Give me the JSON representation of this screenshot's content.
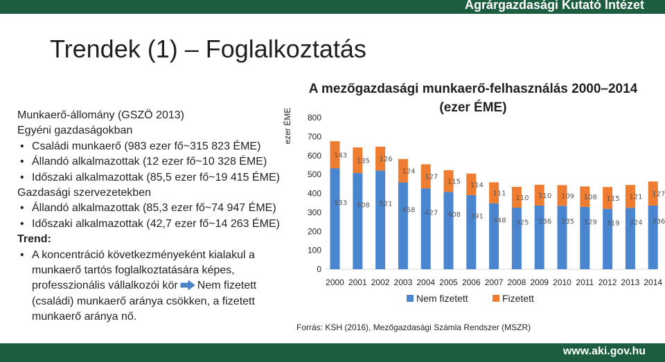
{
  "header": {
    "org_name": "Agrárgazdasági Kutató Intézet"
  },
  "slide": {
    "title": "Trendek (1) – Foglalkoztatás"
  },
  "left_panel": {
    "lines": [
      {
        "kind": "plain",
        "text": "Munkaerő-állomány (GSZÖ 2013)"
      },
      {
        "kind": "plain",
        "text": "Egyéni gazdaságokban"
      },
      {
        "kind": "bullet",
        "text": "Családi munkaerő (983 ezer fő~315 823 ÉME)"
      },
      {
        "kind": "bullet",
        "text": "Állandó alkalmazottak (12 ezer fő~10 328 ÉME)"
      },
      {
        "kind": "bullet",
        "text": "Időszaki alkalmazottak (85,5 ezer fő~19 415 ÉME)"
      },
      {
        "kind": "plain",
        "text": "Gazdasági szervezetekben"
      },
      {
        "kind": "bullet",
        "text": "Állandó alkalmazottak (85,3 ezer fő~74 947 ÉME)"
      },
      {
        "kind": "bullet",
        "text": "Időszaki alkalmazottak (42,7 ezer fő~14 263 ÉME)"
      },
      {
        "kind": "strong",
        "text": "Trend:"
      },
      {
        "kind": "bullet",
        "text": "A koncentráció következményeként kialakul a"
      },
      {
        "kind": "cont",
        "text": "munkaerő tartós foglalkoztatására képes,"
      },
      {
        "kind": "cont-arrow",
        "text": "professzionális vállalkozói kör",
        "text_after": "Nem fizetett"
      },
      {
        "kind": "cont",
        "text": "(családi) munkaerő aránya csökken, a fizetett"
      },
      {
        "kind": "cont",
        "text": "munkaerő aránya nő."
      }
    ]
  },
  "chart_data": {
    "type": "bar",
    "stacked": true,
    "title_line1": "A mezőgazdasági munkaerő-felhasználás 2000–2014",
    "title_line2": "(ezer ÉME)",
    "ylabel": "ezer ÉME",
    "xlabel": "",
    "ylim": [
      0,
      800
    ],
    "yticks": [
      0,
      100,
      200,
      300,
      400,
      500,
      600,
      700,
      800
    ],
    "grid": false,
    "legend": "bottom",
    "categories": [
      "2000",
      "2001",
      "2002",
      "2003",
      "2004",
      "2005",
      "2006",
      "2007",
      "2008",
      "2009",
      "2010",
      "2011",
      "2012",
      "2013",
      "2014"
    ],
    "series": [
      {
        "name": "Nem fizetett",
        "color": "#4a86d0",
        "values": [
          533,
          508,
          521,
          458,
          427,
          408,
          391,
          348,
          325,
          336,
          335,
          329,
          319,
          324,
          336
        ]
      },
      {
        "name": "Fizetett",
        "color": "#ee7d31",
        "values": [
          143,
          135,
          126,
          124,
          127,
          115,
          114,
          111,
          110,
          110,
          109,
          108,
          115,
          121,
          127
        ]
      }
    ]
  },
  "source": {
    "text": "Forrás: KSH (2016), Mezőgazdasági Számla Rendszer (MSZR)"
  },
  "footer": {
    "url": "www.aki.gov.hu"
  },
  "icons": {
    "arrow": "right-arrow-icon"
  }
}
